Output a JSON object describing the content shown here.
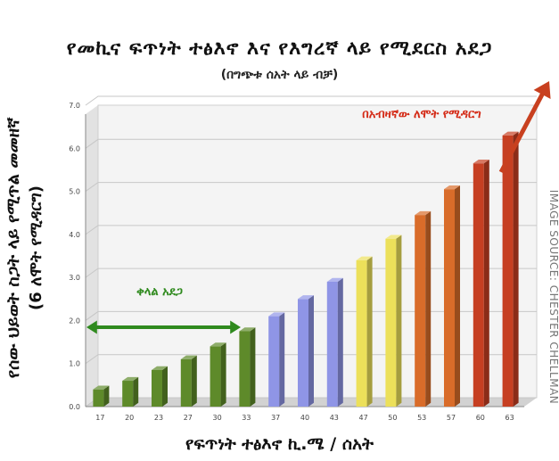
{
  "chart_data": {
    "type": "bar",
    "title": "የመኪና ፍጥነት ተፅእኖ  እና የእግረኛ ላይ የሚደርስ አደጋ",
    "subtitle": "(በግጭቱ ሰአት ላይ ብቻ)",
    "ylabel_line1": "የሰው ህይወት ስጋት ላይ የሚጥል መመዘኛ",
    "ylabel_line2": "(6 ለሞት የሚዳርግ)",
    "xlabel": "የፍጥነት ተፅእኖ  ኪ.ሜ / ሰአት",
    "categories": [
      "17",
      "20",
      "23",
      "27",
      "30",
      "33",
      "37",
      "40",
      "43",
      "47",
      "50",
      "53",
      "57",
      "60",
      "63"
    ],
    "values": [
      0.4,
      0.6,
      0.85,
      1.1,
      1.4,
      1.75,
      2.1,
      2.5,
      2.9,
      3.4,
      3.9,
      4.45,
      5.05,
      5.65,
      6.3
    ],
    "colors": [
      "#5e8a2a",
      "#5e8a2a",
      "#5e8a2a",
      "#5e8a2a",
      "#5e8a2a",
      "#5e8a2a",
      "#8f95e6",
      "#8f95e6",
      "#8f95e6",
      "#ece05a",
      "#ece05a",
      "#d96c2a",
      "#d96c2a",
      "#c63f22",
      "#c63f22"
    ],
    "ylim": [
      0,
      7
    ],
    "yticks": [
      "0.0",
      "1.0",
      "2.0",
      "3.0",
      "4.0",
      "5.0",
      "6.0",
      "7.0"
    ],
    "grid": true,
    "annotations": [
      {
        "text": "ቀላል አደጋ",
        "color": "#2f8a1e"
      },
      {
        "text": "በአብዛኛው ለሞት የሚዳርግ",
        "color": "#d42a16"
      }
    ]
  },
  "source": "IMAGE SOURCE: CHESTER CHELLMAN"
}
